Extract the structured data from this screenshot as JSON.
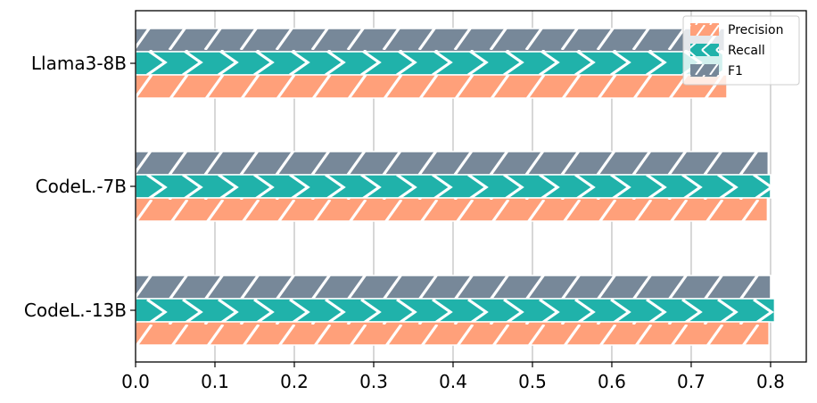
{
  "chart_data": {
    "type": "bar",
    "orientation": "horizontal",
    "title": "",
    "xlabel": "",
    "ylabel": "",
    "categories": [
      "Llama3-8B",
      "CodeL.-7B",
      "CodeL.-13B"
    ],
    "series": [
      {
        "name": "Precision",
        "values": [
          0.745,
          0.796,
          0.798
        ],
        "color": "#FFA07A",
        "hatch": "forward-diagonal"
      },
      {
        "name": "Recall",
        "values": [
          0.74,
          0.8,
          0.805
        ],
        "color": "#20B2AA",
        "hatch": "chevron"
      },
      {
        "name": "F1",
        "values": [
          0.742,
          0.797,
          0.8
        ],
        "color": "#778899",
        "hatch": "forward-diagonal"
      }
    ],
    "xlim": [
      0,
      0.845
    ],
    "xticks": [
      "0.0",
      "0.1",
      "0.2",
      "0.3",
      "0.4",
      "0.5",
      "0.6",
      "0.7",
      "0.8"
    ],
    "grid": "vertical",
    "legend_position": "top-right"
  }
}
